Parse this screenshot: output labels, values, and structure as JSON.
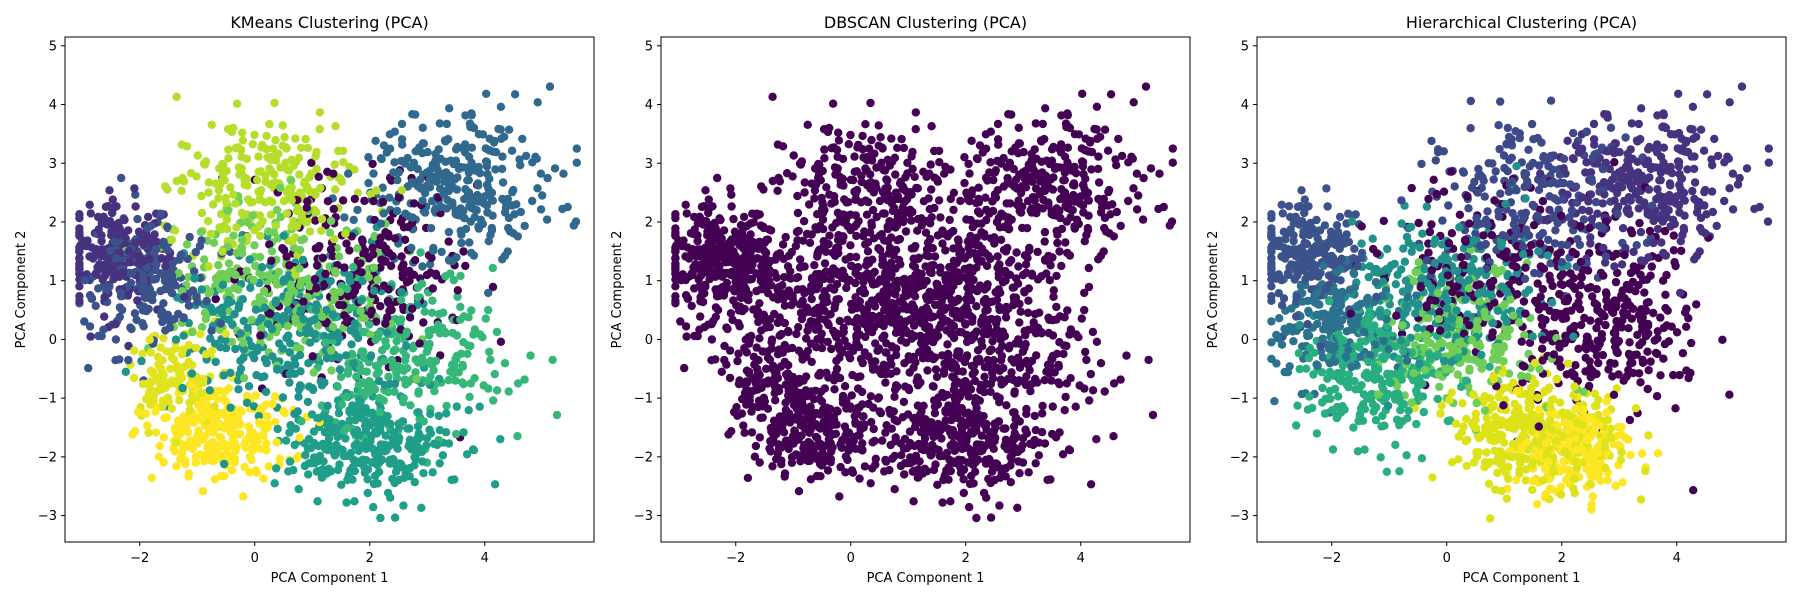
{
  "chart_data": [
    {
      "type": "scatter",
      "title": "KMeans Clustering (PCA)",
      "xlabel": "PCA Component 1",
      "ylabel": "PCA Component 2",
      "xlim": [
        -3.3,
        5.9
      ],
      "ylim": [
        -3.45,
        5.15
      ],
      "xticks": [
        -2,
        0,
        2,
        4,
        6
      ],
      "yticks": [
        -3,
        -2,
        -1,
        0,
        1,
        2,
        3,
        4,
        5
      ],
      "colormap": "viridis",
      "grid": false,
      "legend": "none",
      "clusters": [
        {
          "cx": -2.4,
          "cy": 1.4,
          "sx": 0.45,
          "sy": 0.45,
          "n": 200,
          "color": "#46327e"
        },
        {
          "cx": -1.9,
          "cy": 1.0,
          "sx": 0.5,
          "sy": 0.55,
          "n": 200,
          "color": "#3b528b"
        },
        {
          "cx": 3.5,
          "cy": 2.6,
          "sx": 0.8,
          "sy": 0.6,
          "n": 300,
          "color": "#31688e"
        },
        {
          "cx": 1.9,
          "cy": 1.2,
          "sx": 0.9,
          "sy": 0.8,
          "n": 260,
          "color": "#440154"
        },
        {
          "cx": 0.6,
          "cy": 0.2,
          "sx": 1.0,
          "sy": 0.8,
          "n": 300,
          "color": "#21918c"
        },
        {
          "cx": 2.0,
          "cy": -1.8,
          "sx": 0.7,
          "sy": 0.45,
          "n": 300,
          "color": "#1f9e89"
        },
        {
          "cx": 2.6,
          "cy": -0.3,
          "sx": 0.9,
          "sy": 0.7,
          "n": 250,
          "color": "#35b779"
        },
        {
          "cx": 0.4,
          "cy": 0.9,
          "sx": 0.9,
          "sy": 0.7,
          "n": 250,
          "color": "#6ece58"
        },
        {
          "cx": 0.2,
          "cy": 2.6,
          "sx": 0.8,
          "sy": 0.6,
          "n": 240,
          "color": "#b5de2b"
        },
        {
          "cx": -0.6,
          "cy": -1.6,
          "sx": 0.6,
          "sy": 0.4,
          "n": 260,
          "color": "#fde725"
        },
        {
          "cx": -1.4,
          "cy": -0.6,
          "sx": 0.35,
          "sy": 0.4,
          "n": 120,
          "color": "#e0e31f"
        }
      ]
    },
    {
      "type": "scatter",
      "title": "DBSCAN Clustering (PCA)",
      "xlabel": "PCA Component 1",
      "ylabel": "PCA Component 2",
      "xlim": [
        -3.3,
        5.9
      ],
      "ylim": [
        -3.45,
        5.15
      ],
      "xticks": [
        -2,
        0,
        2,
        4,
        6
      ],
      "yticks": [
        -3,
        -2,
        -1,
        0,
        1,
        2,
        3,
        4,
        5
      ],
      "colormap": "viridis",
      "grid": false,
      "legend": "none",
      "clusters": [
        {
          "cx": -2.4,
          "cy": 1.4,
          "sx": 0.45,
          "sy": 0.45,
          "n": 200,
          "color": "#440154"
        },
        {
          "cx": -1.9,
          "cy": 1.0,
          "sx": 0.5,
          "sy": 0.55,
          "n": 200,
          "color": "#440154"
        },
        {
          "cx": 3.5,
          "cy": 2.6,
          "sx": 0.8,
          "sy": 0.6,
          "n": 300,
          "color": "#440154"
        },
        {
          "cx": 1.9,
          "cy": 1.2,
          "sx": 0.9,
          "sy": 0.8,
          "n": 260,
          "color": "#440154"
        },
        {
          "cx": 0.6,
          "cy": 0.2,
          "sx": 1.0,
          "sy": 0.8,
          "n": 300,
          "color": "#440154"
        },
        {
          "cx": 2.0,
          "cy": -1.8,
          "sx": 0.7,
          "sy": 0.45,
          "n": 300,
          "color": "#440154"
        },
        {
          "cx": 2.6,
          "cy": -0.3,
          "sx": 0.9,
          "sy": 0.7,
          "n": 250,
          "color": "#440154"
        },
        {
          "cx": 0.4,
          "cy": 0.9,
          "sx": 0.9,
          "sy": 0.7,
          "n": 250,
          "color": "#440154"
        },
        {
          "cx": 0.2,
          "cy": 2.6,
          "sx": 0.8,
          "sy": 0.6,
          "n": 240,
          "color": "#440154"
        },
        {
          "cx": -0.6,
          "cy": -1.6,
          "sx": 0.6,
          "sy": 0.4,
          "n": 260,
          "color": "#440154"
        },
        {
          "cx": -1.4,
          "cy": -0.6,
          "sx": 0.35,
          "sy": 0.4,
          "n": 120,
          "color": "#440154"
        }
      ]
    },
    {
      "type": "scatter",
      "title": "Hierarchical Clustering (PCA)",
      "xlabel": "PCA Component 1",
      "ylabel": "PCA Component 2",
      "xlim": [
        -3.3,
        5.9
      ],
      "ylim": [
        -3.45,
        5.15
      ],
      "xticks": [
        -2,
        0,
        2,
        4,
        6
      ],
      "yticks": [
        -3,
        -2,
        -1,
        0,
        1,
        2,
        3,
        4,
        5
      ],
      "colormap": "viridis",
      "grid": false,
      "legend": "none",
      "clusters": [
        {
          "cx": -2.4,
          "cy": 1.4,
          "sx": 0.45,
          "sy": 0.45,
          "n": 220,
          "color": "#3b528b"
        },
        {
          "cx": -2.0,
          "cy": 0.3,
          "sx": 0.5,
          "sy": 0.5,
          "n": 200,
          "color": "#2c728e"
        },
        {
          "cx": 3.5,
          "cy": 2.6,
          "sx": 0.8,
          "sy": 0.6,
          "n": 300,
          "color": "#46327e"
        },
        {
          "cx": 2.8,
          "cy": 0.3,
          "sx": 0.8,
          "sy": 0.8,
          "n": 300,
          "color": "#440154"
        },
        {
          "cx": 0.0,
          "cy": 0.9,
          "sx": 0.9,
          "sy": 0.7,
          "n": 260,
          "color": "#21918c"
        },
        {
          "cx": -1.2,
          "cy": -0.6,
          "sx": 0.6,
          "sy": 0.6,
          "n": 260,
          "color": "#28ae80"
        },
        {
          "cx": 0.2,
          "cy": 0.0,
          "sx": 0.7,
          "sy": 0.6,
          "n": 200,
          "color": "#6ece58"
        },
        {
          "cx": 1.5,
          "cy": -1.6,
          "sx": 0.7,
          "sy": 0.5,
          "n": 320,
          "color": "#dde318"
        },
        {
          "cx": 2.2,
          "cy": -1.9,
          "sx": 0.5,
          "sy": 0.4,
          "n": 200,
          "color": "#fde725"
        },
        {
          "cx": 1.5,
          "cy": 2.4,
          "sx": 0.9,
          "sy": 0.7,
          "n": 240,
          "color": "#3e4989"
        },
        {
          "cx": 0.9,
          "cy": 1.2,
          "sx": 1.0,
          "sy": 0.8,
          "n": 200,
          "color": "#440154"
        }
      ]
    }
  ]
}
